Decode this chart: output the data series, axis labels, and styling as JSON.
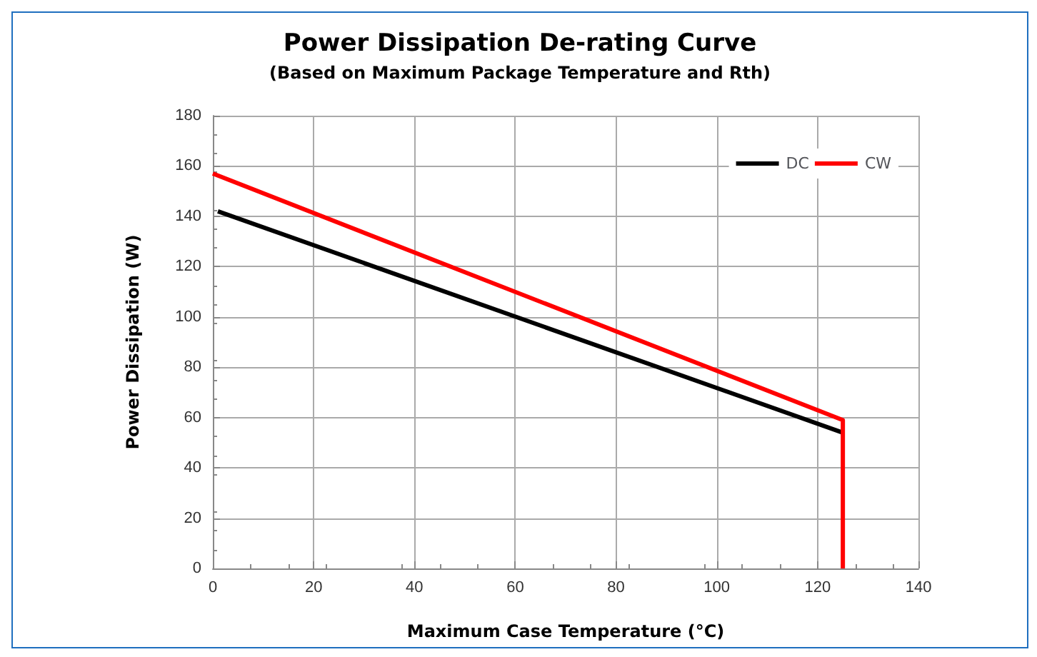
{
  "chart_data": {
    "type": "line",
    "title": "Power Dissipation De-rating Curve",
    "subtitle": "(Based on Maximum Package Temperature and Rth)",
    "xlabel": "Maximum Case Temperature (°C)",
    "ylabel": "Power Dissipation (W)",
    "series": [
      {
        "name": "DC",
        "color": "#000000",
        "x": [
          1,
          125
        ],
        "values": [
          142,
          54
        ]
      },
      {
        "name": "CW",
        "color": "#ff0000",
        "x": [
          0,
          125,
          125
        ],
        "values": [
          157,
          59,
          0
        ]
      }
    ],
    "xlim": [
      0,
      140
    ],
    "xticks": [
      0,
      20,
      40,
      60,
      80,
      100,
      120,
      140
    ],
    "ylim": [
      0,
      180
    ],
    "yticks": [
      0,
      20,
      40,
      60,
      80,
      100,
      120,
      140,
      160,
      180
    ],
    "grid": true,
    "legend": "top right",
    "marker": "none",
    "line_style": "solid"
  }
}
